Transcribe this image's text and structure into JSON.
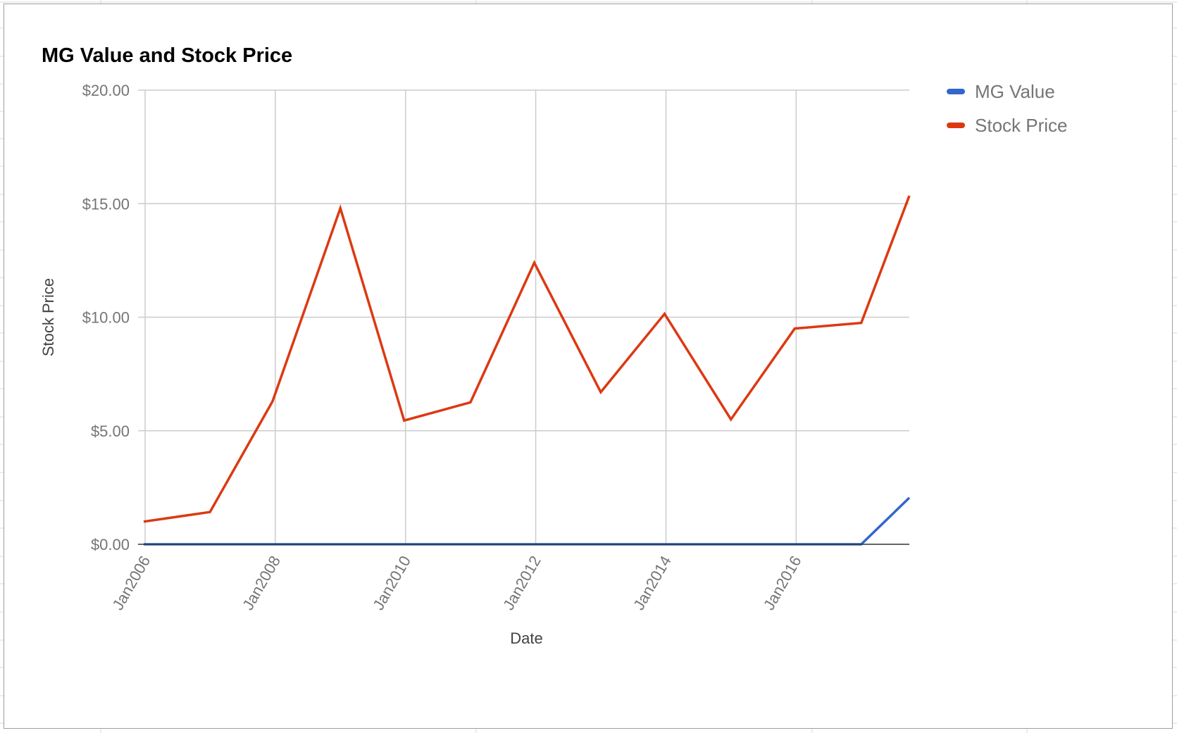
{
  "chart_data": {
    "type": "line",
    "title": "MG Value and Stock Price",
    "xlabel": "Date",
    "ylabel": "Stock Price",
    "ylim": [
      0,
      20
    ],
    "y_ticks": [
      "$0.00",
      "$5.00",
      "$10.00",
      "$15.00",
      "$20.00"
    ],
    "x_range": [
      "2005-12-24",
      "2017-09-27"
    ],
    "x_ticks": [
      {
        "date": "2006-01-01",
        "label": "Jan2006"
      },
      {
        "date": "2008-01-01",
        "label": "Jan2008"
      },
      {
        "date": "2010-01-01",
        "label": "Jan2010"
      },
      {
        "date": "2012-01-01",
        "label": "Jan2012"
      },
      {
        "date": "2014-01-01",
        "label": "Jan2014"
      },
      {
        "date": "2016-01-01",
        "label": "Jan2016"
      }
    ],
    "grid": true,
    "legend_position": "right",
    "series": [
      {
        "name": "MG Value",
        "color": "#3366cc",
        "points": [
          {
            "x": "2005-12-24",
            "y": 0
          },
          {
            "x": "2016-12-31",
            "y": 0
          },
          {
            "x": "2017-09-27",
            "y": 2.05
          }
        ]
      },
      {
        "name": "Stock Price",
        "color": "#dc3912",
        "points": [
          {
            "x": "2005-12-24",
            "y": 1.0
          },
          {
            "x": "2006-12-31",
            "y": 1.42
          },
          {
            "x": "2007-12-17",
            "y": 6.3
          },
          {
            "x": "2008-12-31",
            "y": 14.8
          },
          {
            "x": "2009-12-24",
            "y": 5.45
          },
          {
            "x": "2010-12-31",
            "y": 6.25
          },
          {
            "x": "2011-12-24",
            "y": 12.4
          },
          {
            "x": "2012-12-31",
            "y": 6.7
          },
          {
            "x": "2013-12-24",
            "y": 10.15
          },
          {
            "x": "2014-12-31",
            "y": 5.5
          },
          {
            "x": "2015-12-24",
            "y": 9.5
          },
          {
            "x": "2016-12-31",
            "y": 9.75
          },
          {
            "x": "2017-09-27",
            "y": 15.35
          }
        ]
      }
    ]
  }
}
